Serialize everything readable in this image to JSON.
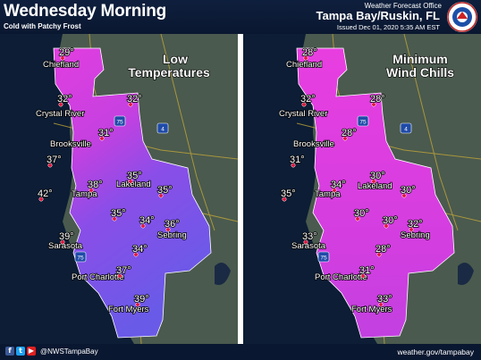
{
  "header": {
    "title": "Wednesday Morning",
    "subtitle": "Cold with Patchy Frost",
    "office": "Weather Forecast Office",
    "location": "Tampa Bay/Ruskin, FL",
    "issued": "Issued Dec 01, 2020 5:35 AM EST"
  },
  "panels": [
    {
      "title_line1": "Low",
      "title_line2": "Temperatures",
      "temps": {
        "chiefland": "29°",
        "crystal_river": "32°",
        "north": "32°",
        "brooksville_n": "31°",
        "brooksville_w": "37°",
        "tampa_n": "38°",
        "lakeland_n": "35°",
        "lakeland_e": "35°",
        "tampa_w": "42°",
        "east": "35°",
        "central": "34°",
        "sebring": "36°",
        "sarasota": "39°",
        "south_c": "34°",
        "port_charlotte": "37°",
        "fort_myers": "39°"
      }
    },
    {
      "title_line1": "Minimum",
      "title_line2": "Wind Chills",
      "temps": {
        "chiefland": "28°",
        "crystal_river": "32°",
        "north": "28°",
        "brooksville_n": "28°",
        "brooksville_w": "31°",
        "tampa_n": "34°",
        "lakeland_n": "30°",
        "lakeland_e": "30°",
        "tampa_w": "35°",
        "east": "30°",
        "central": "30°",
        "sebring": "32°",
        "sarasota": "33°",
        "south_c": "28°",
        "port_charlotte": "31°",
        "fort_myers": "33°"
      }
    }
  ],
  "cities": {
    "chiefland": "Chiefland",
    "crystal_river": "Crystal River",
    "brooksville": "Brooksville",
    "tampa": "Tampa",
    "lakeland": "Lakeland",
    "sarasota": "Sarasota",
    "sebring": "Sebring",
    "port_charlotte": "Port Charlotte",
    "fort_myers": "Fort Myers"
  },
  "highways": [
    "75",
    "4",
    "75"
  ],
  "footer": {
    "handle": "@NWSTampaBay",
    "website": "weather.gov/tampabay",
    "social_icons": [
      "facebook-icon",
      "twitter-icon",
      "youtube-icon"
    ]
  },
  "colors": {
    "cold_magenta": "#e040e0",
    "mid_purple": "#b048e0",
    "warm_blue": "#6a5ae8",
    "header_bg": "#0e1f3d"
  }
}
